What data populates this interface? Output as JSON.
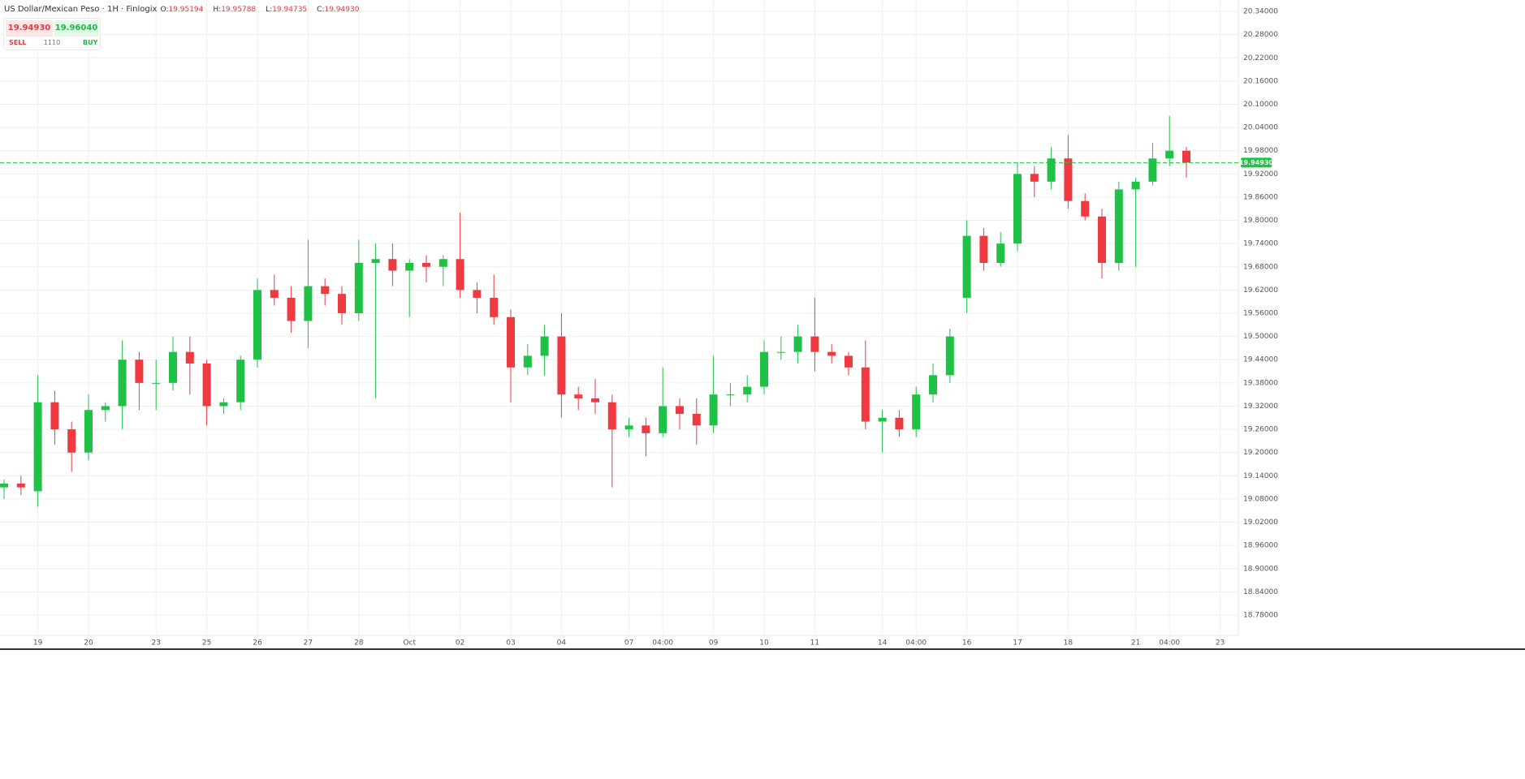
{
  "header": {
    "title": "US Dollar/Mexican Peso · 1H · Finlogix",
    "ohlc": [
      {
        "key": "O:",
        "value": "19.95194"
      },
      {
        "key": "H:",
        "value": "19.95788"
      },
      {
        "key": "L:",
        "value": "19.94735"
      },
      {
        "key": "C:",
        "value": "19.94930"
      }
    ]
  },
  "trade_panel": {
    "sell_price": "19.94930",
    "buy_price": "19.96040",
    "sell_label": "SELL",
    "buy_label": "BUY",
    "quantity": "1110"
  },
  "chart_data": {
    "type": "candlestick",
    "up_color": "#1fc246",
    "down_color": "#ee3a40",
    "grid": true,
    "categories": [
      null,
      null,
      "19",
      null,
      null,
      "20",
      null,
      null,
      null,
      "23",
      null,
      null,
      "25",
      null,
      null,
      "26",
      null,
      null,
      "27",
      null,
      null,
      "28",
      null,
      null,
      "Oct",
      null,
      null,
      "02",
      null,
      null,
      "03",
      null,
      null,
      "04",
      null,
      null,
      null,
      "07",
      null,
      "04:00",
      null,
      null,
      "09",
      null,
      null,
      "10",
      null,
      null,
      "11",
      null,
      null,
      null,
      "14",
      null,
      "04:00",
      null,
      null,
      "16",
      null,
      null,
      "17",
      null,
      null,
      "18",
      null,
      null,
      null,
      "21",
      null,
      "04:00",
      null,
      null,
      "23"
    ],
    "open": [
      19.11,
      19.12,
      19.1,
      19.33,
      19.26,
      19.2,
      19.31,
      19.32,
      19.44,
      19.38,
      19.38,
      19.46,
      19.43,
      19.32,
      19.33,
      19.44,
      19.62,
      19.6,
      19.54,
      19.63,
      19.61,
      19.56,
      19.69,
      19.7,
      19.67,
      19.69,
      19.68,
      19.7,
      19.62,
      19.6,
      19.55,
      19.42,
      19.45,
      19.5,
      19.35,
      19.34,
      19.33,
      19.26,
      19.27,
      19.25,
      19.32,
      19.3,
      19.27,
      19.35,
      19.35,
      19.37,
      19.46,
      19.46,
      19.5,
      19.46,
      19.45,
      19.42,
      19.28,
      19.29,
      19.26,
      19.35,
      19.4,
      19.6,
      19.76,
      19.69,
      19.74,
      19.92,
      19.9,
      19.96,
      19.85,
      19.81,
      19.69,
      19.88,
      19.9,
      19.96,
      19.98,
      null,
      null
    ],
    "high": [
      19.13,
      19.14,
      19.4,
      19.36,
      19.28,
      19.35,
      19.33,
      19.49,
      19.46,
      19.44,
      19.5,
      19.5,
      19.44,
      19.34,
      19.45,
      19.65,
      19.66,
      19.63,
      19.75,
      19.65,
      19.63,
      19.75,
      19.74,
      19.74,
      19.7,
      19.71,
      19.71,
      19.82,
      19.64,
      19.66,
      19.57,
      19.48,
      19.53,
      19.56,
      19.37,
      19.39,
      19.35,
      19.29,
      19.29,
      19.42,
      19.34,
      19.34,
      19.45,
      19.38,
      19.4,
      19.49,
      19.5,
      19.53,
      19.6,
      19.48,
      19.46,
      19.49,
      19.31,
      19.31,
      19.37,
      19.43,
      19.52,
      19.8,
      19.78,
      19.77,
      19.95,
      19.94,
      19.99,
      20.02,
      19.87,
      19.83,
      19.9,
      19.91,
      20.0,
      20.07,
      19.99,
      null,
      null
    ],
    "low": [
      19.08,
      19.09,
      19.06,
      19.22,
      19.15,
      19.18,
      19.28,
      19.26,
      19.31,
      19.31,
      19.36,
      19.35,
      19.27,
      19.3,
      19.31,
      19.42,
      19.58,
      19.51,
      19.47,
      19.58,
      19.53,
      19.54,
      19.34,
      19.63,
      19.55,
      19.64,
      19.63,
      19.6,
      19.56,
      19.53,
      19.33,
      19.4,
      19.4,
      19.29,
      19.31,
      19.3,
      19.11,
      19.24,
      19.19,
      19.24,
      19.26,
      19.22,
      19.25,
      19.32,
      19.33,
      19.35,
      19.44,
      19.43,
      19.41,
      19.43,
      19.4,
      19.26,
      19.2,
      19.24,
      19.24,
      19.33,
      19.38,
      19.56,
      19.67,
      19.68,
      19.72,
      19.86,
      19.88,
      19.83,
      19.8,
      19.65,
      19.67,
      19.68,
      19.89,
      19.94,
      19.91,
      null,
      null
    ],
    "close": [
      19.12,
      19.11,
      19.33,
      19.26,
      19.2,
      19.31,
      19.32,
      19.44,
      19.38,
      19.38,
      19.46,
      19.43,
      19.32,
      19.33,
      19.44,
      19.62,
      19.6,
      19.54,
      19.63,
      19.61,
      19.56,
      19.69,
      19.7,
      19.67,
      19.69,
      19.68,
      19.7,
      19.62,
      19.6,
      19.55,
      19.42,
      19.45,
      19.5,
      19.35,
      19.34,
      19.33,
      19.26,
      19.27,
      19.25,
      19.32,
      19.3,
      19.27,
      19.35,
      19.35,
      19.37,
      19.46,
      19.46,
      19.5,
      19.46,
      19.45,
      19.42,
      19.28,
      19.29,
      19.26,
      19.35,
      19.4,
      19.5,
      19.76,
      19.69,
      19.74,
      19.92,
      19.9,
      19.96,
      19.85,
      19.81,
      19.69,
      19.88,
      19.9,
      19.96,
      19.98,
      19.9493,
      null,
      null
    ],
    "last_price": {
      "value": 19.9493,
      "label": "19.94930"
    },
    "ylim": [
      18.7276,
      20.3694
    ],
    "yticks": [
      {
        "value": 20.34,
        "label": "20.34000"
      },
      {
        "value": 20.28,
        "label": "20.28000"
      },
      {
        "value": 20.22,
        "label": "20.22000"
      },
      {
        "value": 20.16,
        "label": "20.16000"
      },
      {
        "value": 20.1,
        "label": "20.10000"
      },
      {
        "value": 20.04,
        "label": "20.04000"
      },
      {
        "value": 19.98,
        "label": "19.98000"
      },
      {
        "value": 19.92,
        "label": "19.92000"
      },
      {
        "value": 19.86,
        "label": "19.86000"
      },
      {
        "value": 19.8,
        "label": "19.80000"
      },
      {
        "value": 19.74,
        "label": "19.74000"
      },
      {
        "value": 19.68,
        "label": "19.68000"
      },
      {
        "value": 19.62,
        "label": "19.62000"
      },
      {
        "value": 19.56,
        "label": "19.56000"
      },
      {
        "value": 19.5,
        "label": "19.50000"
      },
      {
        "value": 19.44,
        "label": "19.44000"
      },
      {
        "value": 19.38,
        "label": "19.38000"
      },
      {
        "value": 19.32,
        "label": "19.32000"
      },
      {
        "value": 19.26,
        "label": "19.26000"
      },
      {
        "value": 19.2,
        "label": "19.20000"
      },
      {
        "value": 19.14,
        "label": "19.14000"
      },
      {
        "value": 19.08,
        "label": "19.08000"
      },
      {
        "value": 19.02,
        "label": "19.02000"
      },
      {
        "value": 18.96,
        "label": "18.96000"
      },
      {
        "value": 18.9,
        "label": "18.90000"
      },
      {
        "value": 18.84,
        "label": "18.84000"
      },
      {
        "value": 18.78,
        "label": "18.78000"
      }
    ]
  }
}
